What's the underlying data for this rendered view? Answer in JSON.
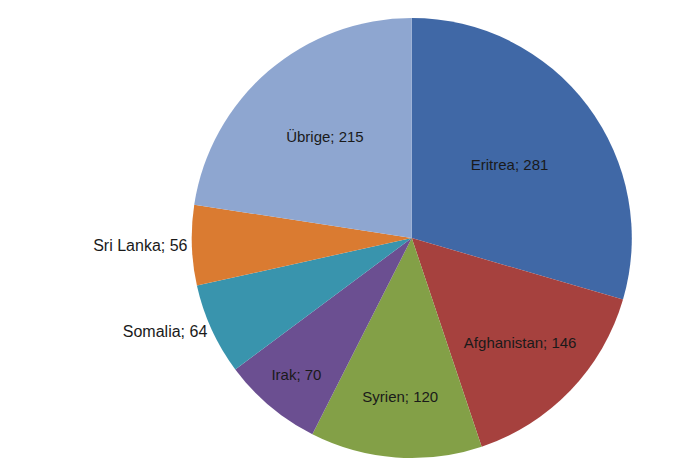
{
  "chart_data": {
    "type": "pie",
    "categories": [
      "Eritrea",
      "Afghanistan",
      "Syrien",
      "Irak",
      "Somalia",
      "Sri Lanka",
      "Übrige"
    ],
    "values": [
      281,
      146,
      120,
      70,
      64,
      56,
      215
    ],
    "value_labels": [
      "Eritrea; 281",
      "Afghanistan; 146",
      "Syrien; 120",
      "Irak; 70",
      "Somalia; 64",
      "Sri Lanka; 56",
      "Übrige; 215"
    ],
    "colors": [
      "#4068a6",
      "#a6413e",
      "#83a047",
      "#6b4f91",
      "#3994ad",
      "#da7b31",
      "#8ea6d0"
    ],
    "data_labels": true
  }
}
